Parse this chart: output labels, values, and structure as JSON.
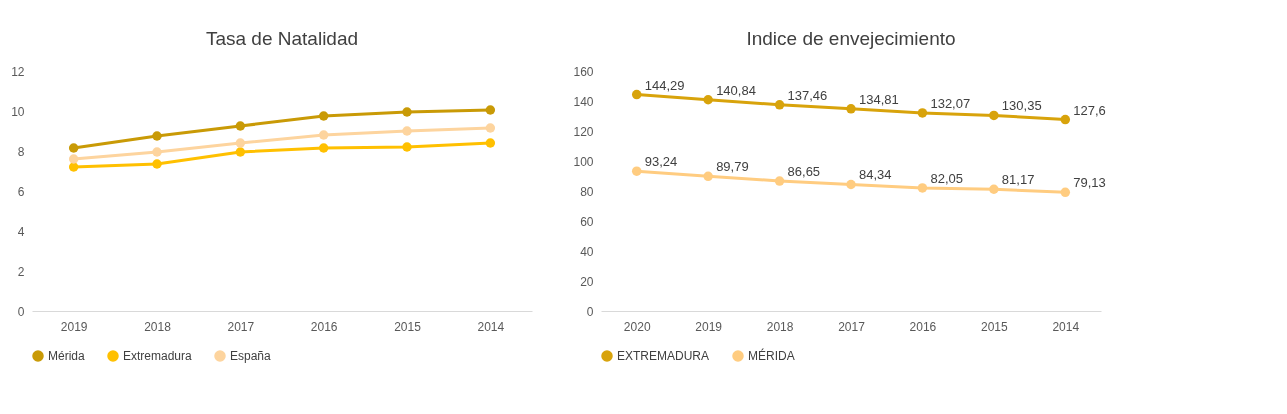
{
  "chart_data": [
    {
      "type": "line",
      "title": "Tasa de Natalidad",
      "categories": [
        "2019",
        "2018",
        "2017",
        "2016",
        "2015",
        "2014"
      ],
      "ylim": [
        0,
        12
      ],
      "yticks": [
        0,
        2,
        4,
        6,
        8,
        10,
        12
      ],
      "legend": "bottom",
      "marker": "circle",
      "series": [
        {
          "name": "Mérida",
          "color": "#c99a06",
          "values": [
            8.15,
            8.75,
            9.25,
            9.75,
            9.95,
            10.05
          ]
        },
        {
          "name": "Extremadura",
          "color": "#ffc000",
          "values": [
            7.2,
            7.35,
            7.95,
            8.15,
            8.2,
            8.4
          ]
        },
        {
          "name": "España",
          "color": "#fdd49e",
          "values": [
            7.6,
            7.95,
            8.4,
            8.8,
            9.0,
            9.15
          ]
        }
      ]
    },
    {
      "type": "line",
      "title": "Indice de envejecimiento",
      "categories": [
        "2020",
        "2019",
        "2018",
        "2017",
        "2016",
        "2015",
        "2014"
      ],
      "ylim": [
        0,
        160
      ],
      "yticks": [
        0,
        20,
        40,
        60,
        80,
        100,
        120,
        140,
        160
      ],
      "legend": "bottom",
      "marker": "circle",
      "series": [
        {
          "name": "EXTREMADURA",
          "color": "#d8a30b",
          "values": [
            144.29,
            140.84,
            137.46,
            134.81,
            132.07,
            130.35,
            127.6
          ],
          "value_labels": [
            "144,29",
            "140,84",
            "137,46",
            "134,81",
            "132,07",
            "130,35",
            "127,6"
          ]
        },
        {
          "name": "MÉRIDA",
          "color": "#ffcc80",
          "values": [
            93.24,
            89.79,
            86.65,
            84.34,
            82.05,
            81.17,
            79.13
          ],
          "value_labels": [
            "93,24",
            "89,79",
            "86,65",
            "84,34",
            "82,05",
            "81,17",
            "79,13"
          ]
        }
      ]
    }
  ]
}
